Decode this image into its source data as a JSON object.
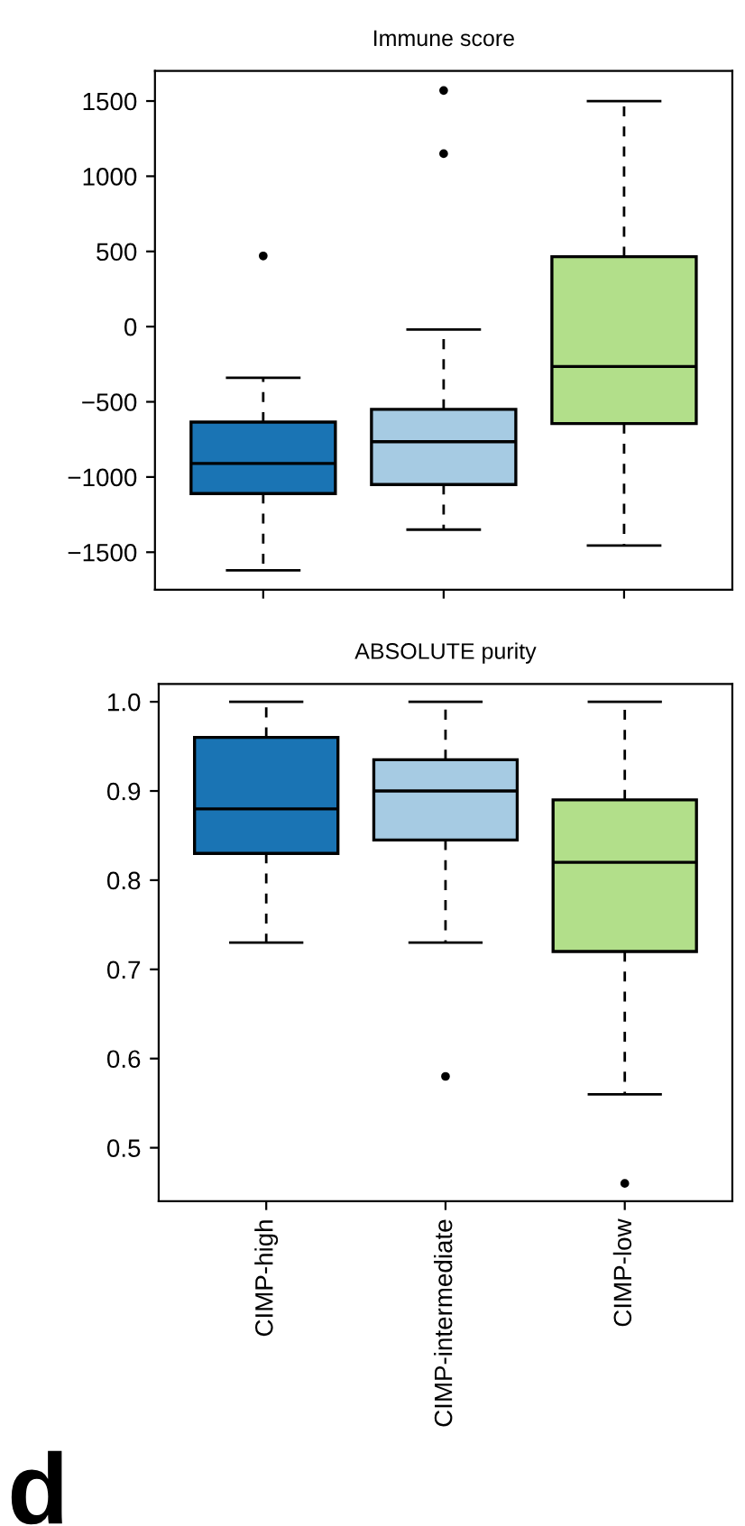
{
  "chart_data": [
    {
      "type": "box",
      "title": "Immune score",
      "categories": [
        null,
        null,
        null
      ],
      "colors": [
        "#1a74b4",
        "#a6cbe3",
        "#b2df8a"
      ],
      "ylim": [
        -1750,
        1700
      ],
      "yticks": [
        -1500,
        -1000,
        -500,
        0,
        500,
        1000,
        1500
      ],
      "tick_labels": "y",
      "grid": false,
      "legend": false,
      "boxes": [
        {
          "low": -1620,
          "q1": -1110,
          "median": -910,
          "q3": -635,
          "high": -340,
          "outliers": [
            470
          ]
        },
        {
          "low": -1350,
          "q1": -1050,
          "median": -765,
          "q3": -550,
          "high": -20,
          "outliers": [
            1150,
            1570
          ]
        },
        {
          "low": -1455,
          "q1": -645,
          "median": -265,
          "q3": 465,
          "high": 1500
        }
      ]
    },
    {
      "type": "box",
      "title": "ABSOLUTE purity",
      "categories": [
        "CIMP-high",
        "CIMP-intermediate",
        "CIMP-low"
      ],
      "colors": [
        "#1a74b4",
        "#a6cbe3",
        "#b2df8a"
      ],
      "ylim": [
        0.44,
        1.02
      ],
      "yticks": [
        0.5,
        0.6,
        0.7,
        0.8,
        0.9,
        {
          "value": 1,
          "label": "1.0"
        }
      ],
      "grid": false,
      "legend": false,
      "annotations": [
        "d"
      ],
      "boxes": [
        {
          "low": 0.73,
          "q1": 0.83,
          "median": 0.88,
          "q3": 0.96,
          "high": 1.0
        },
        {
          "low": 0.73,
          "q1": 0.845,
          "median": 0.9,
          "q3": 0.935,
          "high": 1.0,
          "outliers": [
            0.58
          ]
        },
        {
          "low": 0.56,
          "q1": 0.72,
          "median": 0.82,
          "q3": 0.89,
          "high": 1.0,
          "outliers": [
            0.46
          ]
        }
      ]
    }
  ]
}
